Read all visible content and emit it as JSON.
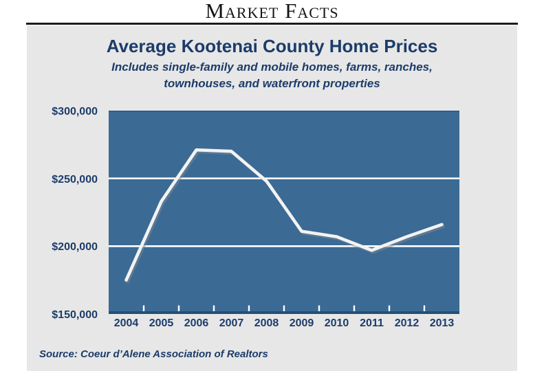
{
  "header": {
    "title": "Market Facts"
  },
  "panel": {
    "title": "Average Kootenai County Home Prices",
    "subtitle_line1": "Includes single-family and mobile homes, farms, ranches,",
    "subtitle_line2": "townhouses, and waterfront properties",
    "source": "Source: Coeur d’Alene Association of Realtors"
  },
  "colors": {
    "page_bg": "#ffffff",
    "panel_bg": "#e7e7e7",
    "plot_bg": "#3b6a94",
    "plot_top_edge": "#2f5d89",
    "plot_bottom_border": "#215077",
    "gridline": "#ffffff",
    "tick": "#ffffff",
    "line": "#f3f3f3",
    "line_shadow": "rgba(125,136,148,0.5)",
    "text_navy": "#1c3c6a",
    "header_black": "#141414"
  },
  "chart_data": {
    "type": "line",
    "title": "Average Kootenai County Home Prices",
    "subtitle": "Includes single-family and mobile homes, farms, ranches, townhouses, and waterfront properties",
    "categories": [
      "2004",
      "2005",
      "2006",
      "2007",
      "2008",
      "2009",
      "2010",
      "2011",
      "2012",
      "2013"
    ],
    "series": [
      {
        "name": "Average home price",
        "values": [
          175000,
          233000,
          271000,
          270000,
          248000,
          211000,
          207000,
          197000,
          207000,
          216000
        ]
      }
    ],
    "xlabel": "",
    "ylabel": "",
    "ylim": [
      150000,
      300000
    ],
    "y_ticks": [
      {
        "value": 300000,
        "label": "$300,000"
      },
      {
        "value": 250000,
        "label": "$250,000"
      },
      {
        "value": 200000,
        "label": "$200,000"
      },
      {
        "value": 150000,
        "label": "$150,000"
      }
    ],
    "gridline_values": [
      250000,
      200000
    ],
    "grid": "horizontal white lines at 250k and 200k",
    "legend_position": "none",
    "source": "Coeur d’Alene Association of Realtors"
  }
}
